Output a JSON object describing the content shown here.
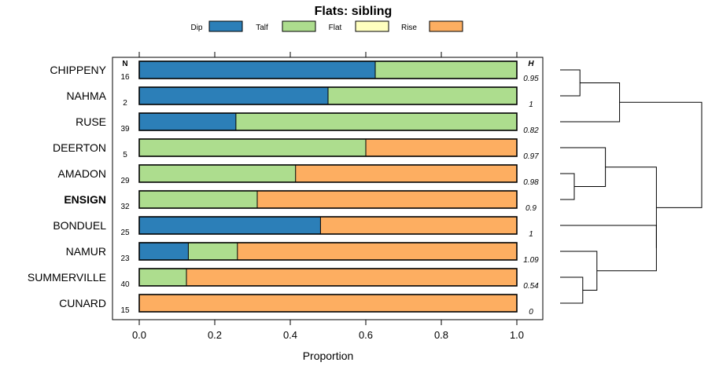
{
  "chart_data": {
    "type": "bar",
    "orientation": "horizontal",
    "stacked": true,
    "title": "Flats: sibling",
    "xlabel": "Proportion",
    "ylabel": "",
    "xlim": [
      0,
      1
    ],
    "xticks": [
      "0.0",
      "0.2",
      "0.4",
      "0.6",
      "0.8",
      "1.0"
    ],
    "legend": {
      "position": "top",
      "entries": [
        {
          "name": "Dip",
          "color": "#2c7fb8"
        },
        {
          "name": "Talf",
          "color": "#addd8e"
        },
        {
          "name": "Flat",
          "color": "#ffffbf"
        },
        {
          "name": "Rise",
          "color": "#fdae61"
        }
      ]
    },
    "n_header": "N",
    "h_header": "H",
    "categories": [
      "CHIPPENY",
      "NAHMA",
      "RUSE",
      "DEERTON",
      "AMADON",
      "ENSIGN",
      "BONDUEL",
      "NAMUR",
      "SUMMERVILLE",
      "CUNARD"
    ],
    "highlighted": [
      "ENSIGN"
    ],
    "n": [
      "16",
      "2",
      "39",
      "5",
      "29",
      "32",
      "25",
      "23",
      "40",
      "15"
    ],
    "h": [
      "0.95",
      "1",
      "0.82",
      "0.97",
      "0.98",
      "0.9",
      "1",
      "1.09",
      "0.54",
      "0"
    ],
    "series": [
      {
        "name": "Dip",
        "values": [
          0.625,
          0.5,
          0.256,
          0,
          0,
          0,
          0.48,
          0.13,
          0,
          0
        ]
      },
      {
        "name": "Talf",
        "values": [
          0.375,
          0.5,
          0.744,
          0.6,
          0.414,
          0.3125,
          0,
          0.13,
          0.125,
          0
        ]
      },
      {
        "name": "Flat",
        "values": [
          0,
          0,
          0,
          0,
          0,
          0,
          0,
          0,
          0,
          0
        ]
      },
      {
        "name": "Rise",
        "values": [
          0,
          0,
          0,
          0.4,
          0.586,
          0.6875,
          0.52,
          0.74,
          0.875,
          1
        ]
      }
    ],
    "dendrogram": {
      "tree": [
        [
          [
            0,
            1
          ],
          2
        ],
        [
          [
            3,
            [
              4,
              5
            ]
          ],
          [
            6,
            [
              7,
              [
                8,
                9
              ]
            ]
          ]
        ]
      ],
      "heights": {
        "0-1": 0.14,
        "0-1-2": 0.42,
        "4-5": 0.1,
        "3-4-5": 0.32,
        "8-9": 0.16,
        "7-8-9": 0.26,
        "6-7-8-9": 0.68,
        "right": 0.68,
        "root": 1.0
      }
    }
  }
}
